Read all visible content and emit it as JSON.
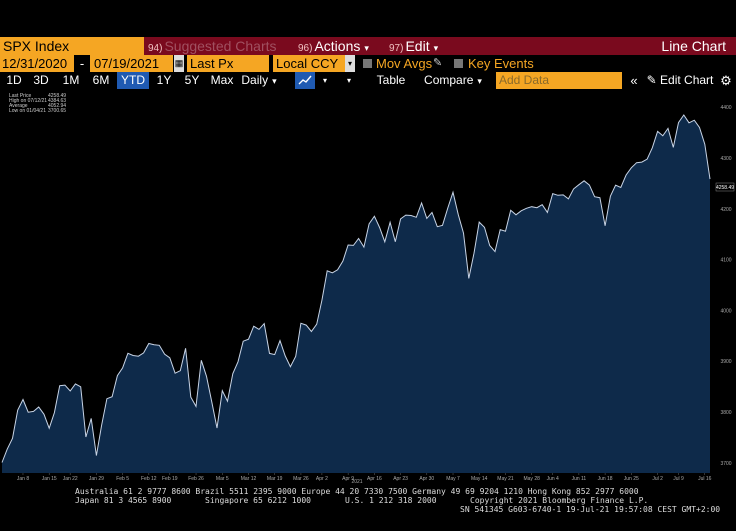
{
  "header": {
    "security": "SPX Index",
    "suggested_num": "94)",
    "suggested_label": "Suggested Charts",
    "actions_num": "96)",
    "actions_label": "Actions",
    "edit_num": "97)",
    "edit_label": "Edit",
    "chart_type": "Line Chart"
  },
  "controls": {
    "start_date": "12/31/2020",
    "end_date": "07/19/2021",
    "field": "Last Px",
    "currency": "Local CCY",
    "mov_avgs": "Mov Avgs",
    "key_events": "Key Events"
  },
  "toolbar": {
    "periods": [
      "1D",
      "3D",
      "1M",
      "6M",
      "YTD",
      "1Y",
      "5Y",
      "Max"
    ],
    "active_period": "YTD",
    "frequency": "Daily",
    "table": "Table",
    "compare": "Compare",
    "add_data_placeholder": "Add Data",
    "collapse": "«",
    "edit_chart": "Edit Chart",
    "settings": "⚙"
  },
  "legend": {
    "last_price_label": "Last Price",
    "last_price_value": "4258.49",
    "high_label": "High on 07/12/21",
    "high_value": "4384.63",
    "average_label": "Average",
    "average_value": "4052.94",
    "low_label": "Low on 01/04/21",
    "low_value": "3700.65"
  },
  "chart_data": {
    "type": "area",
    "x": [
      "Jan 4",
      "Jan 5",
      "Jan 6",
      "Jan 7",
      "Jan 8",
      "Jan 11",
      "Jan 12",
      "Jan 13",
      "Jan 14",
      "Jan 15",
      "Jan 19",
      "Jan 20",
      "Jan 21",
      "Jan 22",
      "Jan 25",
      "Jan 26",
      "Jan 27",
      "Jan 28",
      "Jan 29",
      "Feb 1",
      "Feb 2",
      "Feb 3",
      "Feb 4",
      "Feb 5",
      "Feb 8",
      "Feb 9",
      "Feb 10",
      "Feb 11",
      "Feb 12",
      "Feb 16",
      "Feb 17",
      "Feb 18",
      "Feb 19",
      "Feb 22",
      "Feb 23",
      "Feb 24",
      "Feb 25",
      "Feb 26",
      "Mar 1",
      "Mar 2",
      "Mar 3",
      "Mar 4",
      "Mar 5",
      "Mar 8",
      "Mar 9",
      "Mar 10",
      "Mar 11",
      "Mar 12",
      "Mar 15",
      "Mar 16",
      "Mar 17",
      "Mar 18",
      "Mar 19",
      "Mar 22",
      "Mar 23",
      "Mar 24",
      "Mar 25",
      "Mar 26",
      "Mar 29",
      "Mar 30",
      "Mar 31",
      "Apr 1",
      "Apr 5",
      "Apr 6",
      "Apr 7",
      "Apr 8",
      "Apr 9",
      "Apr 12",
      "Apr 13",
      "Apr 14",
      "Apr 15",
      "Apr 16",
      "Apr 19",
      "Apr 20",
      "Apr 21",
      "Apr 22",
      "Apr 23",
      "Apr 26",
      "Apr 27",
      "Apr 28",
      "Apr 29",
      "Apr 30",
      "May 3",
      "May 4",
      "May 5",
      "May 6",
      "May 7",
      "May 10",
      "May 11",
      "May 12",
      "May 13",
      "May 14",
      "May 17",
      "May 18",
      "May 19",
      "May 20",
      "May 21",
      "May 24",
      "May 25",
      "May 26",
      "May 27",
      "May 28",
      "Jun 1",
      "Jun 2",
      "Jun 3",
      "Jun 4",
      "Jun 7",
      "Jun 8",
      "Jun 9",
      "Jun 10",
      "Jun 11",
      "Jun 14",
      "Jun 15",
      "Jun 16",
      "Jun 17",
      "Jun 18",
      "Jun 21",
      "Jun 22",
      "Jun 23",
      "Jun 24",
      "Jun 25",
      "Jun 28",
      "Jun 29",
      "Jun 30",
      "Jul 1",
      "Jul 2",
      "Jul 6",
      "Jul 7",
      "Jul 8",
      "Jul 9",
      "Jul 12",
      "Jul 13",
      "Jul 14",
      "Jul 15",
      "Jul 16",
      "Jul 19"
    ],
    "series": [
      {
        "values": [
          3700.65,
          3726.86,
          3748.14,
          3803.79,
          3824.68,
          3799.61,
          3801.19,
          3809.84,
          3795.54,
          3768.25,
          3798.91,
          3851.85,
          3853.07,
          3841.47,
          3855.36,
          3849.62,
          3750.77,
          3787.38,
          3714.24,
          3773.86,
          3826.31,
          3830.17,
          3871.74,
          3886.83,
          3915.59,
          3911.23,
          3909.88,
          3916.38,
          3934.83,
          3932.59,
          3931.33,
          3913.97,
          3906.71,
          3876.5,
          3881.37,
          3925.43,
          3829.34,
          3811.15,
          3901.82,
          3870.29,
          3819.72,
          3768.47,
          3841.94,
          3821.35,
          3875.44,
          3898.81,
          3939.34,
          3943.34,
          3968.94,
          3962.71,
          3974.12,
          3915.46,
          3913.1,
          3940.59,
          3910.52,
          3889.14,
          3909.52,
          3974.54,
          3971.09,
          3958.55,
          3972.89,
          4019.87,
          4077.91,
          4073.94,
          4079.95,
          4097.17,
          4128.8,
          4127.99,
          4141.59,
          4124.66,
          4170.42,
          4185.47,
          4163.26,
          4134.94,
          4173.42,
          4134.98,
          4180.17,
          4187.62,
          4186.72,
          4183.18,
          4211.47,
          4181.17,
          4192.66,
          4164.66,
          4167.59,
          4201.62,
          4232.6,
          4188.43,
          4152.1,
          4063.04,
          4112.5,
          4173.85,
          4163.29,
          4127.83,
          4115.68,
          4159.12,
          4155.86,
          4197.05,
          4188.13,
          4195.99,
          4200.88,
          4204.11,
          4202.04,
          4208.12,
          4192.85,
          4229.89,
          4226.52,
          4227.26,
          4219.55,
          4239.18,
          4247.44,
          4255.15,
          4246.59,
          4223.7,
          4221.86,
          4166.45,
          4224.79,
          4246.44,
          4241.84,
          4266.49,
          4280.7,
          4290.61,
          4291.8,
          4297.5,
          4319.94,
          4352.34,
          4343.54,
          4358.13,
          4320.82,
          4369.55,
          4384.63,
          4369.21,
          4374.3,
          4360.03,
          4327.16,
          4258.49
        ]
      }
    ],
    "ylim": [
      3680,
      4420
    ],
    "y_ticks": [
      3700,
      3800,
      3900,
      4000,
      4100,
      4200,
      4300,
      4400
    ],
    "x_tick_labels": [
      "Jan 8",
      "Jan 15",
      "Jan 22",
      "Jan 29",
      "Feb 5",
      "Feb 12",
      "Feb 19",
      "Feb 26",
      "Mar 5",
      "Mar 12",
      "Mar 19",
      "Mar 26",
      "Apr 2",
      "Apr 9",
      "Apr 16",
      "Apr 23",
      "Apr 30",
      "May 7",
      "May 14",
      "May 21",
      "May 28",
      "Jun 4",
      "Jun 11",
      "Jun 18",
      "Jun 25",
      "Jul 2",
      "Jul 9",
      "Jul 16"
    ],
    "year_label": "2021",
    "last_value_label": "4258.49",
    "colors": {
      "line": "#c8d4e6",
      "fill": "#0e2a4a",
      "bg": "#000000"
    }
  },
  "footer": {
    "line1": "Australia 61 2 9777 8600 Brazil 5511 2395 9000 Europe 44 20 7330 7500 Germany 49 69 9204 1210 Hong Kong 852 2977 6000",
    "line2a": "Japan 81 3 4565 8900",
    "line2b": "Singapore 65 6212 1000",
    "line2c": "U.S. 1 212 318 2000",
    "line2d": "Copyright 2021 Bloomberg Finance L.P.",
    "line3": "SN 541345 G603-6740-1 19-Jul-21 19:57:08 CEST GMT+2:00"
  }
}
